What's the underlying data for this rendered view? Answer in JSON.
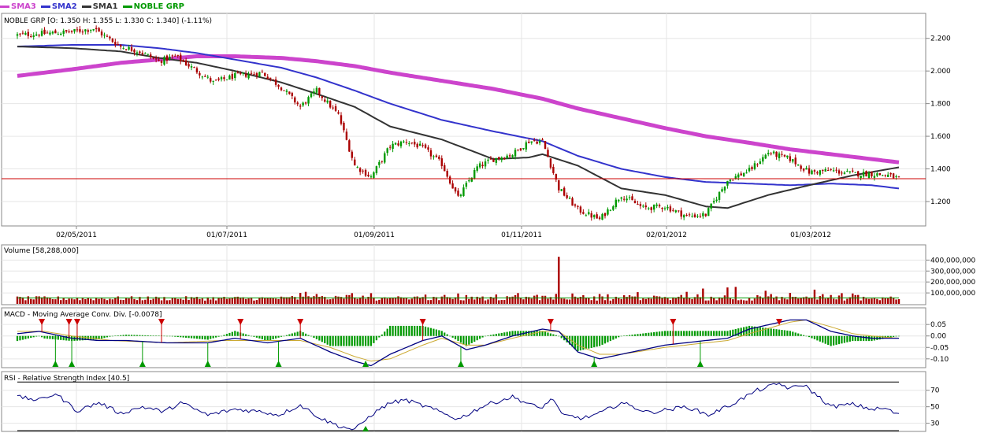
{
  "legend": {
    "items": [
      {
        "label": "SMA3",
        "color": "#cc44cc"
      },
      {
        "label": "SMA2",
        "color": "#3333cc"
      },
      {
        "label": "SMA1",
        "color": "#333333"
      },
      {
        "label": "NOBLE GRP",
        "color": "#009900"
      }
    ]
  },
  "colors": {
    "up_candle": "#009900",
    "down_candle": "#aa0000",
    "sma1": "#333333",
    "sma2": "#3333cc",
    "sma3": "#cc44cc",
    "last_price_line": "#cc0000",
    "macd_line": "#000080",
    "signal_line": "#ccaa33",
    "histogram": "#009900",
    "sell_marker": "#cc0000",
    "buy_marker": "#009900",
    "volume_bar": "#aa0000",
    "volume_avg": "#009900",
    "rsi_line": "#000080"
  },
  "chart_data": [
    {
      "type": "candlestick",
      "title": "NOBLE GRP [O: 1.350  H: 1.355  L: 1.330  C: 1.340] (-1.11%)",
      "x_tick_labels": [
        "02/05/2011",
        "01/07/2011",
        "01/09/2011",
        "01/11/2011",
        "02/01/2012",
        "01/03/2012"
      ],
      "y_tick_labels": [
        "2.200",
        "2.000",
        "1.800",
        "1.600",
        "1.400",
        "1.200"
      ],
      "ylim": [
        1.06,
        2.3
      ],
      "last_close": 1.34,
      "close_anchors": [
        [
          0,
          2.22
        ],
        [
          20,
          2.24
        ],
        [
          28,
          2.26
        ],
        [
          38,
          2.15
        ],
        [
          45,
          2.12
        ],
        [
          52,
          2.06
        ],
        [
          58,
          2.09
        ],
        [
          66,
          2.0
        ],
        [
          72,
          1.93
        ],
        [
          80,
          1.97
        ],
        [
          90,
          1.99
        ],
        [
          97,
          1.9
        ],
        [
          104,
          1.78
        ],
        [
          110,
          1.88
        ],
        [
          118,
          1.73
        ],
        [
          124,
          1.42
        ],
        [
          130,
          1.35
        ],
        [
          137,
          1.54
        ],
        [
          143,
          1.57
        ],
        [
          149,
          1.53
        ],
        [
          156,
          1.43
        ],
        [
          162,
          1.22
        ],
        [
          169,
          1.41
        ],
        [
          175,
          1.46
        ],
        [
          182,
          1.49
        ],
        [
          188,
          1.57
        ],
        [
          193,
          1.57
        ],
        [
          199,
          1.28
        ],
        [
          206,
          1.15
        ],
        [
          214,
          1.09
        ],
        [
          222,
          1.24
        ],
        [
          230,
          1.16
        ],
        [
          238,
          1.17
        ],
        [
          246,
          1.11
        ],
        [
          253,
          1.12
        ],
        [
          261,
          1.33
        ],
        [
          269,
          1.39
        ],
        [
          276,
          1.5
        ],
        [
          284,
          1.46
        ],
        [
          291,
          1.38
        ],
        [
          299,
          1.39
        ],
        [
          307,
          1.37
        ],
        [
          314,
          1.37
        ],
        [
          320,
          1.36
        ],
        [
          324,
          1.34
        ]
      ],
      "sma1_anchors": [
        [
          0,
          2.15
        ],
        [
          20,
          2.14
        ],
        [
          38,
          2.12
        ],
        [
          52,
          2.08
        ],
        [
          66,
          2.05
        ],
        [
          80,
          2.0
        ],
        [
          97,
          1.93
        ],
        [
          110,
          1.86
        ],
        [
          124,
          1.78
        ],
        [
          137,
          1.66
        ],
        [
          156,
          1.58
        ],
        [
          175,
          1.46
        ],
        [
          188,
          1.47
        ],
        [
          193,
          1.49
        ],
        [
          206,
          1.42
        ],
        [
          222,
          1.28
        ],
        [
          238,
          1.24
        ],
        [
          253,
          1.17
        ],
        [
          261,
          1.16
        ],
        [
          276,
          1.24
        ],
        [
          291,
          1.3
        ],
        [
          307,
          1.36
        ],
        [
          324,
          1.41
        ]
      ],
      "sma2_anchors": [
        [
          0,
          2.15
        ],
        [
          20,
          2.16
        ],
        [
          38,
          2.16
        ],
        [
          52,
          2.14
        ],
        [
          66,
          2.11
        ],
        [
          80,
          2.07
        ],
        [
          97,
          2.02
        ],
        [
          110,
          1.96
        ],
        [
          124,
          1.88
        ],
        [
          137,
          1.8
        ],
        [
          156,
          1.7
        ],
        [
          175,
          1.63
        ],
        [
          193,
          1.57
        ],
        [
          206,
          1.48
        ],
        [
          222,
          1.4
        ],
        [
          238,
          1.35
        ],
        [
          253,
          1.32
        ],
        [
          269,
          1.31
        ],
        [
          284,
          1.3
        ],
        [
          299,
          1.31
        ],
        [
          314,
          1.3
        ],
        [
          324,
          1.28
        ]
      ],
      "sma3_anchors": [
        [
          0,
          1.97
        ],
        [
          20,
          2.01
        ],
        [
          38,
          2.05
        ],
        [
          52,
          2.07
        ],
        [
          66,
          2.09
        ],
        [
          80,
          2.09
        ],
        [
          97,
          2.08
        ],
        [
          110,
          2.06
        ],
        [
          124,
          2.03
        ],
        [
          137,
          1.99
        ],
        [
          156,
          1.94
        ],
        [
          175,
          1.89
        ],
        [
          193,
          1.83
        ],
        [
          206,
          1.77
        ],
        [
          222,
          1.71
        ],
        [
          238,
          1.65
        ],
        [
          253,
          1.6
        ],
        [
          269,
          1.56
        ],
        [
          284,
          1.52
        ],
        [
          299,
          1.49
        ],
        [
          314,
          1.46
        ],
        [
          324,
          1.44
        ]
      ]
    },
    {
      "type": "bar",
      "title": "Volume [58,288,000]",
      "y_tick_labels": [
        "400,000,000",
        "300,000,000",
        "200,000,000",
        "100,000,000"
      ],
      "ylim": [
        0,
        460000000
      ],
      "avg_value": 55000000,
      "spikes": [
        [
          104,
          100000000
        ],
        [
          106,
          110000000
        ],
        [
          110,
          90000000
        ],
        [
          150,
          85000000
        ],
        [
          162,
          95000000
        ],
        [
          199,
          430000000
        ],
        [
          204,
          95000000
        ],
        [
          214,
          90000000
        ],
        [
          246,
          110000000
        ],
        [
          252,
          140000000
        ],
        [
          261,
          150000000
        ],
        [
          264,
          155000000
        ],
        [
          275,
          120000000
        ],
        [
          293,
          130000000
        ],
        [
          307,
          95000000
        ]
      ]
    },
    {
      "type": "line",
      "title": "MACD - Moving Average Conv. Div. [-0.0078]",
      "y_tick_labels": [
        "0.05",
        "0.00",
        "-0.05",
        "-0.10"
      ],
      "ylim": [
        -0.135,
        0.085
      ],
      "macd_anchors": [
        [
          0,
          0.01
        ],
        [
          8,
          0.02
        ],
        [
          20,
          -0.01
        ],
        [
          30,
          -0.02
        ],
        [
          40,
          -0.02
        ],
        [
          55,
          -0.03
        ],
        [
          70,
          -0.03
        ],
        [
          80,
          -0.01
        ],
        [
          92,
          -0.03
        ],
        [
          104,
          -0.01
        ],
        [
          115,
          -0.07
        ],
        [
          124,
          -0.11
        ],
        [
          130,
          -0.13
        ],
        [
          137,
          -0.08
        ],
        [
          149,
          -0.02
        ],
        [
          156,
          0.0
        ],
        [
          165,
          -0.06
        ],
        [
          172,
          -0.04
        ],
        [
          182,
          0.0
        ],
        [
          193,
          0.03
        ],
        [
          199,
          0.02
        ],
        [
          206,
          -0.07
        ],
        [
          214,
          -0.1
        ],
        [
          222,
          -0.08
        ],
        [
          238,
          -0.04
        ],
        [
          253,
          -0.02
        ],
        [
          261,
          -0.01
        ],
        [
          269,
          0.03
        ],
        [
          284,
          0.07
        ],
        [
          290,
          0.07
        ],
        [
          299,
          0.02
        ],
        [
          307,
          0.0
        ],
        [
          314,
          -0.01
        ],
        [
          324,
          -0.01
        ]
      ],
      "signal_anchors": [
        [
          0,
          0.02
        ],
        [
          10,
          0.02
        ],
        [
          20,
          0.0
        ],
        [
          35,
          -0.02
        ],
        [
          55,
          -0.03
        ],
        [
          75,
          -0.02
        ],
        [
          92,
          -0.02
        ],
        [
          104,
          -0.02
        ],
        [
          115,
          -0.05
        ],
        [
          124,
          -0.09
        ],
        [
          130,
          -0.11
        ],
        [
          137,
          -0.1
        ],
        [
          149,
          -0.04
        ],
        [
          156,
          -0.01
        ],
        [
          165,
          -0.04
        ],
        [
          172,
          -0.04
        ],
        [
          182,
          -0.01
        ],
        [
          193,
          0.02
        ],
        [
          199,
          0.02
        ],
        [
          206,
          -0.04
        ],
        [
          214,
          -0.08
        ],
        [
          222,
          -0.08
        ],
        [
          238,
          -0.05
        ],
        [
          253,
          -0.03
        ],
        [
          261,
          -0.02
        ],
        [
          269,
          0.01
        ],
        [
          284,
          0.06
        ],
        [
          290,
          0.07
        ],
        [
          299,
          0.04
        ],
        [
          307,
          0.01
        ],
        [
          314,
          0.0
        ],
        [
          324,
          -0.01
        ]
      ],
      "sell_markers": [
        9,
        19,
        22,
        53,
        82,
        104,
        149,
        196,
        241,
        280
      ],
      "buy_markers": [
        14,
        20,
        46,
        70,
        96,
        128,
        163,
        212,
        251
      ]
    },
    {
      "type": "line",
      "title": "RSI - Relative Strength Index [40.5]",
      "y_tick_labels": [
        "70",
        "50",
        "30"
      ],
      "ylim": [
        22,
        85
      ],
      "overbought": 80,
      "oversold": 20,
      "rsi_anchors": [
        [
          0,
          62
        ],
        [
          8,
          58
        ],
        [
          14,
          66
        ],
        [
          22,
          45
        ],
        [
          30,
          55
        ],
        [
          38,
          42
        ],
        [
          46,
          50
        ],
        [
          54,
          44
        ],
        [
          60,
          55
        ],
        [
          70,
          40
        ],
        [
          80,
          47
        ],
        [
          90,
          44
        ],
        [
          96,
          40
        ],
        [
          104,
          52
        ],
        [
          112,
          35
        ],
        [
          118,
          27
        ],
        [
          124,
          22
        ],
        [
          130,
          40
        ],
        [
          137,
          55
        ],
        [
          143,
          58
        ],
        [
          152,
          48
        ],
        [
          162,
          35
        ],
        [
          172,
          52
        ],
        [
          182,
          62
        ],
        [
          192,
          48
        ],
        [
          197,
          60
        ],
        [
          200,
          40
        ],
        [
          208,
          36
        ],
        [
          214,
          42
        ],
        [
          222,
          55
        ],
        [
          232,
          43
        ],
        [
          246,
          50
        ],
        [
          254,
          40
        ],
        [
          262,
          52
        ],
        [
          272,
          70
        ],
        [
          280,
          78
        ],
        [
          284,
          72
        ],
        [
          289,
          77
        ],
        [
          293,
          66
        ],
        [
          299,
          50
        ],
        [
          307,
          53
        ],
        [
          314,
          47
        ],
        [
          319,
          48
        ],
        [
          324,
          40
        ]
      ]
    }
  ]
}
